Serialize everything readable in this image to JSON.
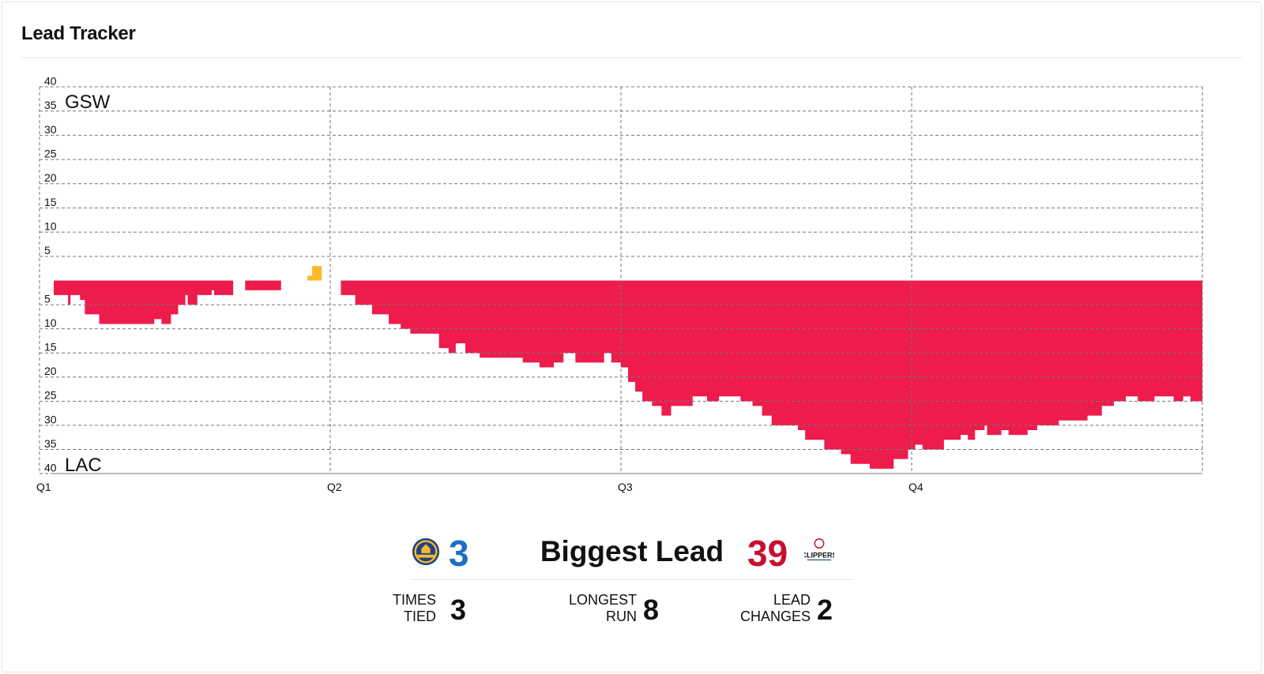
{
  "header": {
    "title": "Lead Tracker"
  },
  "colors": {
    "gsw": "#fdb927",
    "lac": "#ee1b4d",
    "gsw_text": "#1d6fc2",
    "lac_text": "#c8102e",
    "grid": "#777777"
  },
  "chart_data": {
    "type": "area",
    "x_axis": {
      "labels": [
        "Q1",
        "Q2",
        "Q3",
        "Q4"
      ],
      "unit": "game minutes",
      "range": [
        0,
        48
      ]
    },
    "y_axis": {
      "ticks_top": [
        "40",
        "35",
        "30",
        "25",
        "20",
        "15",
        "10",
        "5"
      ],
      "ticks_bottom": [
        "5",
        "10",
        "15",
        "20",
        "25",
        "30",
        "35",
        "40"
      ],
      "range": [
        -40,
        40
      ]
    },
    "team_labels": {
      "top": "GSW",
      "bottom": "LAC"
    },
    "series": [
      {
        "name": "GSW",
        "x": [
          10.6,
          10.8,
          10.8,
          11.2
        ],
        "y": [
          1,
          1,
          3,
          3
        ]
      },
      {
        "name": "LAC",
        "x": [
          0,
          0.6,
          0.7,
          1.1,
          1.3,
          1.9,
          2.4,
          4.2,
          4.5,
          4.9,
          5.2,
          5.5,
          5.6,
          6.0,
          6.6,
          6.7,
          7.0,
          7.5,
          8.0,
          9.5,
          10.0,
          10.6,
          12.0,
          12.2,
          12.6,
          13.3,
          14.0,
          14.5,
          14.9,
          16.1,
          16.5,
          16.8,
          17.2,
          17.8,
          18.7,
          19.6,
          20.3,
          20.9,
          21.3,
          21.8,
          23.0,
          23.3,
          23.7,
          24.0,
          24.3,
          24.6,
          25.0,
          25.4,
          25.8,
          26.7,
          27.3,
          27.8,
          28.7,
          29.2,
          29.6,
          30.0,
          31.1,
          31.4,
          32.2,
          32.9,
          33.3,
          34.1,
          35.1,
          35.7,
          36.0,
          36.3,
          37.2,
          37.9,
          38.2,
          38.5,
          38.9,
          39.0,
          39.6,
          39.9,
          40.7,
          41.1,
          42.0,
          42.4,
          43.2,
          43.8,
          44.3,
          44.8,
          45.3,
          46.0,
          46.5,
          46.8,
          47.2,
          47.5,
          48.0
        ],
        "y": [
          3,
          5,
          3,
          4,
          7,
          9,
          9,
          8,
          9,
          7,
          5,
          3,
          5,
          3,
          2,
          3,
          3,
          0,
          2,
          0,
          0,
          0,
          3,
          3,
          5,
          7,
          9,
          10,
          11,
          14,
          15,
          13,
          15,
          16,
          16,
          17,
          18,
          17,
          15,
          17,
          15,
          17,
          18,
          21,
          23,
          25,
          26,
          28,
          26,
          24,
          25,
          24,
          25,
          26,
          28,
          30,
          31,
          33,
          35,
          36,
          38,
          39,
          37,
          35,
          34,
          35,
          33,
          32,
          33,
          31,
          30,
          32,
          31,
          32,
          31,
          30,
          29,
          29,
          28,
          26,
          25,
          24,
          25,
          24,
          24,
          25,
          24,
          25,
          26
        ]
      }
    ]
  },
  "stats": {
    "gsw_biggest_lead": "3",
    "lac_biggest_lead": "39",
    "biggest_lead_label": "Biggest Lead",
    "times_tied_label_1": "TIMES",
    "times_tied_label_2": "TIED",
    "times_tied_value": "3",
    "longest_run_label_1": "LONGEST",
    "longest_run_label_2": "RUN",
    "longest_run_value": "8",
    "lead_changes_label_1": "LEAD",
    "lead_changes_label_2": "CHANGES",
    "lead_changes_value": "2"
  },
  "logos": {
    "gsw": "warriors-logo",
    "lac": "clippers-logo",
    "lac_logo_text": "CLIPPERS"
  }
}
